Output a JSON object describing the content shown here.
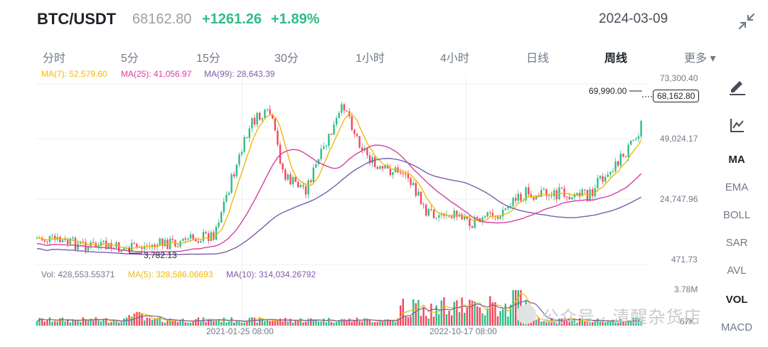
{
  "header": {
    "pair": "BTC/USDT",
    "price": "68162.80",
    "change": "+1261.26",
    "change_pct": "+1.89%",
    "date": "2024-03-09",
    "up_color": "#2ebd85",
    "down_color": "#f6465d"
  },
  "tabs": [
    {
      "label": "分时"
    },
    {
      "label": "5分"
    },
    {
      "label": "15分"
    },
    {
      "label": "30分"
    },
    {
      "label": "1小时"
    },
    {
      "label": "4小时"
    },
    {
      "label": "日线"
    },
    {
      "label": "周线",
      "active": true
    },
    {
      "label": "更多 ▾"
    }
  ],
  "price_legend": {
    "ma7": "MA(7): 52,579.60",
    "ma25": "MA(25): 41,056.97",
    "ma99": "MA(99): 28,643.39",
    "ma7_color": "#f0b90b",
    "ma25_color": "#d63fa0",
    "ma99_color": "#7b5ea7"
  },
  "price_axis": {
    "top": "73,300.40",
    "mid": "49,024.17",
    "low": "24,747.96",
    "bottom": "471.73"
  },
  "annotations": {
    "high": "69,990.00",
    "low": "3,782.13",
    "current": "68,162.80"
  },
  "volume_legend": {
    "vol": "Vol: 428,553.55371",
    "ma5": "MA(5): 328,586.06693",
    "ma10": "MA(10): 314,034.26792"
  },
  "volume_axis": {
    "top": "3.78M",
    "bottom": "67K"
  },
  "time_axis": {
    "t1": "2021-01-25 08:00",
    "t2": "2022-10-17 08:00"
  },
  "sidebar": {
    "draw_icon": "pencil-icon",
    "indicator_icon": "chart-indicator-icon",
    "items": [
      "MA",
      "EMA",
      "BOLL",
      "SAR",
      "AVL",
      "VOL",
      "MACD"
    ]
  },
  "watermark": "公众号 · 清醒杂货店"
}
